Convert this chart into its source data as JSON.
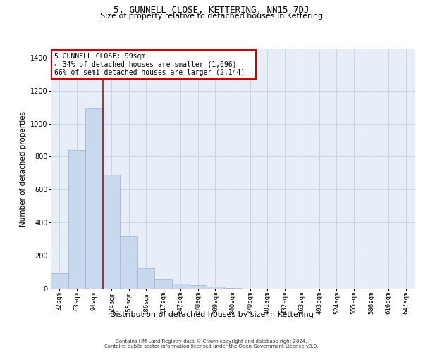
{
  "title": "5, GUNNELL CLOSE, KETTERING, NN15 7DJ",
  "subtitle": "Size of property relative to detached houses in Kettering",
  "xlabel": "Distribution of detached houses by size in Kettering",
  "ylabel": "Number of detached properties",
  "categories": [
    "32sqm",
    "63sqm",
    "94sqm",
    "124sqm",
    "155sqm",
    "186sqm",
    "217sqm",
    "247sqm",
    "278sqm",
    "309sqm",
    "340sqm",
    "370sqm",
    "401sqm",
    "432sqm",
    "463sqm",
    "493sqm",
    "524sqm",
    "555sqm",
    "586sqm",
    "616sqm",
    "647sqm"
  ],
  "values": [
    95,
    840,
    1090,
    690,
    320,
    125,
    55,
    30,
    20,
    12,
    5,
    0,
    0,
    0,
    0,
    0,
    0,
    0,
    0,
    0,
    0
  ],
  "bar_color": "#c8d8ee",
  "bar_edge_color": "#9ab0cc",
  "vline_color": "#cc0000",
  "vline_x_index": 2,
  "annotation_text": "5 GUNNELL CLOSE: 99sqm\n← 34% of detached houses are smaller (1,096)\n66% of semi-detached houses are larger (2,144) →",
  "annotation_box_facecolor": "#ffffff",
  "annotation_box_edgecolor": "#cc0000",
  "ylim": [
    0,
    1450
  ],
  "yticks": [
    0,
    200,
    400,
    600,
    800,
    1000,
    1200,
    1400
  ],
  "grid_color": "#c8d4e8",
  "background_color": "#e8eef8",
  "footer1": "Contains HM Land Registry data © Crown copyright and database right 2024.",
  "footer2": "Contains public sector information licensed under the Open Government Licence v3.0.",
  "title_fontsize": 9,
  "subtitle_fontsize": 8,
  "ylabel_fontsize": 7.5,
  "xlabel_fontsize": 8,
  "tick_fontsize": 6.5,
  "annotation_fontsize": 7,
  "footer_fontsize": 5
}
